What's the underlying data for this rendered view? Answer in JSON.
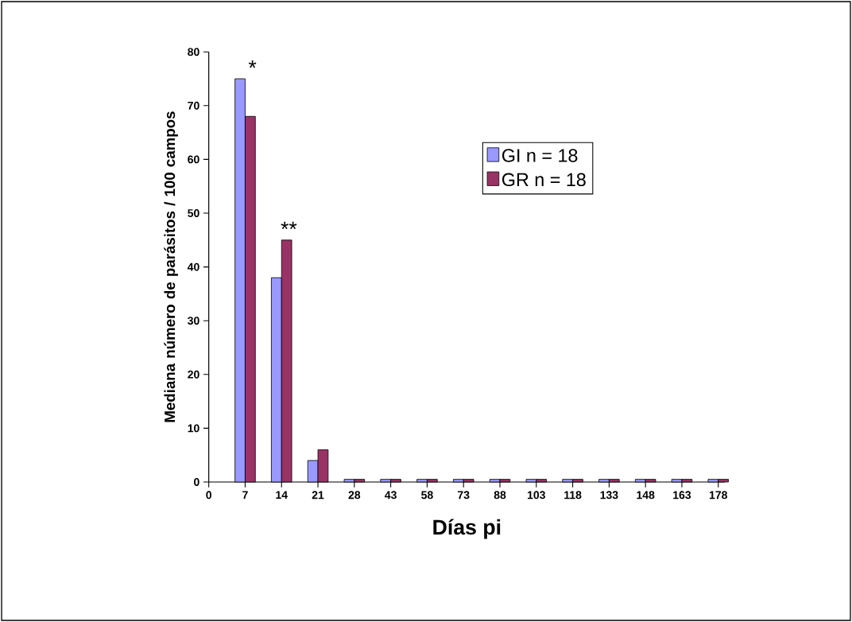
{
  "chart_data": {
    "type": "bar",
    "xlabel": "Días pi",
    "ylabel": "Mediana número de parásitos / 100 campos",
    "categories": [
      "0",
      "7",
      "14",
      "21",
      "28",
      "43",
      "58",
      "73",
      "88",
      "103",
      "118",
      "133",
      "148",
      "163",
      "178"
    ],
    "series": [
      {
        "name": "GI   n = 18",
        "color": "#9999ff",
        "values": [
          null,
          75,
          38,
          4,
          0.5,
          0.5,
          0.5,
          0.5,
          0.5,
          0.5,
          0.5,
          0.5,
          0.5,
          0.5,
          0.5
        ]
      },
      {
        "name": "GR  n = 18",
        "color": "#993366",
        "values": [
          null,
          68,
          45,
          6,
          0.5,
          0.5,
          0.5,
          0.5,
          0.5,
          0.5,
          0.5,
          0.5,
          0.5,
          0.5,
          0.5
        ]
      }
    ],
    "ylim": [
      0,
      80
    ],
    "yticks": [
      0,
      10,
      20,
      30,
      40,
      50,
      60,
      70,
      80
    ],
    "annotations": [
      "*",
      "**"
    ],
    "legend": "top right",
    "grid": false
  }
}
